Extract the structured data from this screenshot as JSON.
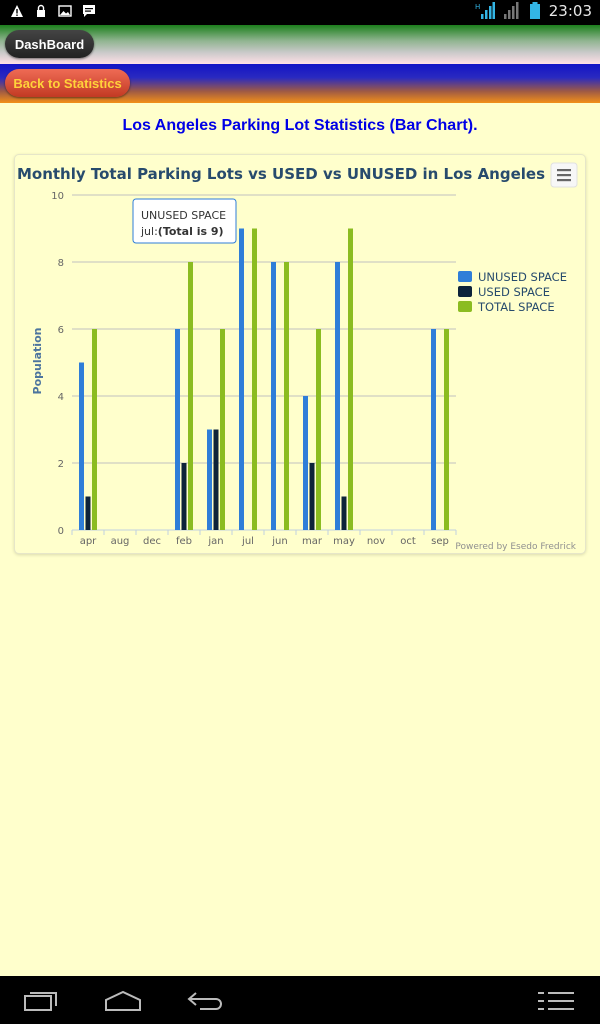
{
  "status_bar": {
    "time": "23:03",
    "left_icons": [
      "warning-icon",
      "lock-icon",
      "image-icon",
      "chat-icon"
    ],
    "right_icons": [
      "hplus-signal-icon",
      "signal-icon",
      "battery-icon"
    ]
  },
  "header": {
    "dashboard_label": "DashBoard",
    "back_label": "Back to Statistics"
  },
  "page_title": "Los Angeles Parking Lot Statistics (Bar Chart).",
  "chart_menu_icon": "menu-icon",
  "chart_data": {
    "type": "bar",
    "title": "Monthly Total Parking Lots vs USED vs UNUSED in Los Angeles",
    "xlabel": "",
    "ylabel": "Population",
    "ylim": [
      0,
      10
    ],
    "yticks": [
      0,
      2,
      4,
      6,
      8,
      10
    ],
    "grid": true,
    "legend_position": "right",
    "categories": [
      "apr",
      "aug",
      "dec",
      "feb",
      "jan",
      "jul",
      "jun",
      "mar",
      "may",
      "nov",
      "oct",
      "sep"
    ],
    "series": [
      {
        "name": "UNUSED SPACE",
        "color": "#2f7ed8",
        "values": [
          5,
          0,
          0,
          6,
          3,
          9,
          8,
          4,
          8,
          0,
          0,
          6
        ]
      },
      {
        "name": "USED SPACE",
        "color": "#0d233a",
        "values": [
          1,
          0,
          0,
          2,
          3,
          0,
          0,
          2,
          1,
          0,
          0,
          0
        ]
      },
      {
        "name": "TOTAL SPACE",
        "color": "#8bbc21",
        "values": [
          6,
          0,
          0,
          8,
          6,
          9,
          8,
          6,
          9,
          0,
          0,
          6
        ]
      }
    ],
    "tooltip": {
      "title": "UNUSED SPACE",
      "prefix": "jul:",
      "value_text": "(Total is 9)"
    },
    "credits": "Powered by Esedo Fredrick"
  },
  "nav_bar": {
    "icons": [
      "recent-apps-icon",
      "home-icon",
      "back-icon",
      "menu-icon"
    ]
  }
}
